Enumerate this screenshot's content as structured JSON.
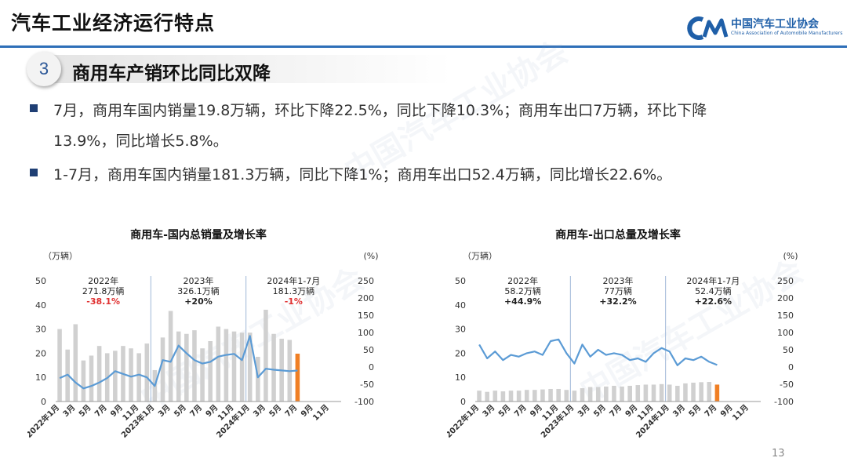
{
  "header": {
    "title": "汽车工业经济运行特点",
    "logo_cn": "中国汽车工业协会",
    "logo_en": "China Association of Automobile Manufacturers",
    "accent": "#2e6fb8"
  },
  "section": {
    "number": "3",
    "title": "商用车产销环比同比双降"
  },
  "bullets": [
    {
      "line1": "7月，商用车国内销量19.8万辆，环比下降22.5%，同比下降10.3%；商用车出口7万辆，环比下降",
      "line2": "13.9%，同比增长5.8%。"
    },
    {
      "line1": "1-7月，商用车国内销量181.3万辆，同比下降1%；商用车出口52.4万辆，同比增长22.6%。"
    }
  ],
  "page_number": "13",
  "chart_data": [
    {
      "type": "bar+line",
      "title": "商用车-国内总销量及增长率",
      "ylabel_left": "（万辆）",
      "ylabel_right": "(%)",
      "ylim_left": [
        0,
        50
      ],
      "ylim_right": [
        -100,
        250
      ],
      "yticks_left": [
        "0",
        "10",
        "20",
        "30",
        "40",
        "50"
      ],
      "yticks_right": [
        "-100",
        "-50",
        "0",
        "50",
        "100",
        "150",
        "200",
        "250"
      ],
      "x_tick_labels": [
        "2022年1月",
        "3月",
        "5月",
        "7月",
        "9月",
        "11月",
        "2023年1月",
        "3月",
        "5月",
        "7月",
        "9月",
        "11月",
        "2024年1月",
        "3月",
        "5月",
        "7月",
        "9月",
        "11月"
      ],
      "months": 36,
      "bars_volume": [
        30,
        21.5,
        32,
        17,
        19,
        23,
        20,
        21,
        23,
        22,
        20,
        24,
        13,
        26.5,
        37.5,
        29,
        28,
        29.5,
        22,
        25,
        31,
        30,
        29,
        28.5,
        28.5,
        18.5,
        38,
        28,
        26,
        25.5,
        19.8
      ],
      "line_growth_rate": [
        -32,
        -22,
        -45,
        -62,
        -55,
        -45,
        -32,
        -12,
        -20,
        -28,
        -22,
        -30,
        -55,
        20,
        15,
        62,
        40,
        20,
        10,
        15,
        30,
        35,
        38,
        20,
        90,
        -30,
        -5,
        -8,
        -10,
        -12,
        -10.3
      ],
      "current_bar_color": "#f07f24",
      "bar_color": "#d0d0d0",
      "line_color": "#5b9bd5",
      "annotations": [
        {
          "year": "2022年",
          "total": "271.8万辆",
          "rate": "-38.1%",
          "rate_color": "#e03030"
        },
        {
          "year": "2023年",
          "total": "326.1万辆",
          "rate": "+20%",
          "rate_color": "#222222"
        },
        {
          "year": "2024年1-7月",
          "total": "181.3万辆",
          "rate": "-1%",
          "rate_color": "#e03030"
        }
      ]
    },
    {
      "type": "bar+line",
      "title": "商用车-出口总量及增长率",
      "ylabel_left": "（万辆）",
      "ylabel_right": "(%)",
      "ylim_left": [
        0,
        50
      ],
      "ylim_right": [
        -100,
        250
      ],
      "yticks_left": [
        "0",
        "10",
        "20",
        "30",
        "40",
        "50"
      ],
      "yticks_right": [
        "-100",
        "-50",
        "0",
        "50",
        "100",
        "150",
        "200",
        "250"
      ],
      "x_tick_labels": [
        "2022年1月",
        "3月",
        "5月",
        "7月",
        "9月",
        "11月",
        "2023年1月",
        "3月",
        "5月",
        "7月",
        "9月",
        "11月",
        "2024年1月",
        "3月",
        "5月",
        "7月",
        "9月",
        "11月"
      ],
      "months": 36,
      "bars_volume": [
        4.5,
        4.0,
        4.5,
        4.2,
        4.5,
        4.5,
        4.8,
        4.8,
        5.0,
        5.2,
        5.2,
        4.8,
        4.5,
        5.5,
        6.0,
        6.0,
        6.2,
        6.5,
        6.2,
        6.5,
        6.8,
        7.0,
        7.0,
        7.2,
        7.0,
        6.5,
        7.5,
        7.8,
        8.0,
        8.1,
        7.0
      ],
      "line_growth_rate": [
        65,
        25,
        45,
        20,
        35,
        30,
        40,
        45,
        35,
        75,
        80,
        40,
        10,
        65,
        30,
        50,
        35,
        40,
        35,
        20,
        25,
        15,
        40,
        55,
        45,
        5,
        25,
        20,
        30,
        15,
        5.8
      ],
      "current_bar_color": "#f07f24",
      "bar_color": "#d0d0d0",
      "line_color": "#5b9bd5",
      "annotations": [
        {
          "year": "2022年",
          "total": "58.2万辆",
          "rate": "+44.9%",
          "rate_color": "#222222"
        },
        {
          "year": "2023年",
          "total": "77万辆",
          "rate": "+32.2%",
          "rate_color": "#222222"
        },
        {
          "year": "2024年1-7月",
          "total": "52.4万辆",
          "rate": "+22.6%",
          "rate_color": "#222222"
        }
      ]
    }
  ]
}
